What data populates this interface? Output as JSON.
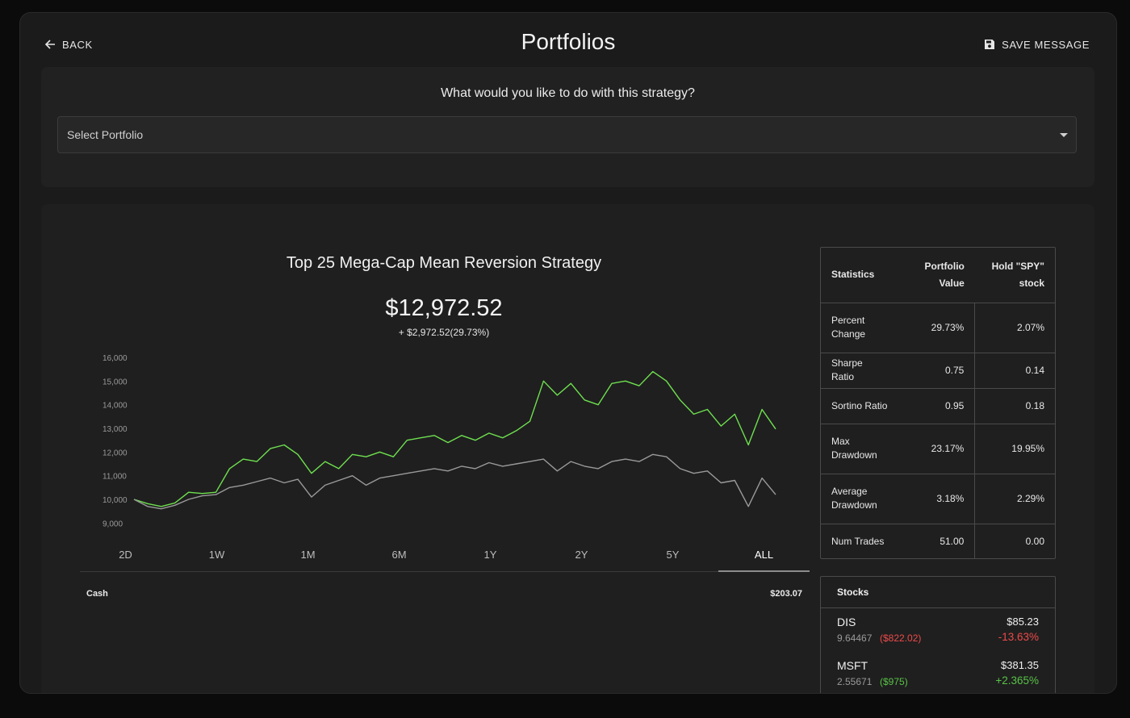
{
  "header": {
    "back_label": "BACK",
    "title": "Portfolios",
    "save_label": "SAVE MESSAGE"
  },
  "action_card": {
    "question": "What would you like to do with this strategy?",
    "select_placeholder": "Select Portfolio"
  },
  "strategy": {
    "title": "Top 25 Mega-Cap Mean Reversion Strategy",
    "value": "$12,972.52",
    "change": "+ $2,972.52(29.73%)"
  },
  "range_tabs": [
    "2D",
    "1W",
    "1M",
    "6M",
    "1Y",
    "2Y",
    "5Y",
    "ALL"
  ],
  "active_range": "ALL",
  "cash": {
    "label": "Cash",
    "value": "$203.07"
  },
  "statistics": {
    "headers": [
      "Statistics",
      "Portfolio Value",
      "Hold \"SPY\" stock"
    ],
    "rows": [
      {
        "name": "Percent Change",
        "portfolio": "29.73%",
        "spy": "2.07%"
      },
      {
        "name": "Sharpe Ratio",
        "portfolio": "0.75",
        "spy": "0.14"
      },
      {
        "name": "Sortino Ratio",
        "portfolio": "0.95",
        "spy": "0.18"
      },
      {
        "name": "Max Drawdown",
        "portfolio": "23.17%",
        "spy": "19.95%"
      },
      {
        "name": "Average Drawdown",
        "portfolio": "3.18%",
        "spy": "2.29%"
      },
      {
        "name": "Num Trades",
        "portfolio": "51.00",
        "spy": "0.00"
      }
    ]
  },
  "stocks": {
    "header": "Stocks",
    "items": [
      {
        "symbol": "DIS",
        "shares": "9.64467",
        "value": "($822.02)",
        "price": "$85.23",
        "pct": "-13.63%",
        "trend": "down"
      },
      {
        "symbol": "MSFT",
        "shares": "2.55671",
        "value": "($975)",
        "price": "$381.35",
        "pct": "+2.365%",
        "trend": "up"
      }
    ]
  },
  "colors": {
    "background": "#1b1b1b",
    "portfolio_line": "#6ee04f",
    "benchmark_line": "#9a9a9a",
    "negative": "#ee4a4a",
    "positive": "#58c247"
  },
  "chart_data": {
    "type": "line",
    "ylim": [
      8500,
      16000
    ],
    "yticks": [
      9000,
      10000,
      11000,
      12000,
      13000,
      14000,
      15000,
      16000
    ],
    "ytick_labels": [
      "9,000",
      "10,000",
      "11,000",
      "12,000",
      "13,000",
      "14,000",
      "15,000",
      "16,000"
    ],
    "series": [
      {
        "color": "#6ee04f",
        "values": [
          10000,
          9820,
          9700,
          9850,
          10300,
          10250,
          10300,
          11300,
          11700,
          11600,
          12150,
          12300,
          11900,
          11100,
          11600,
          11300,
          11900,
          11800,
          12000,
          11800,
          12500,
          12600,
          12700,
          12400,
          12700,
          12500,
          12800,
          12600,
          12900,
          13300,
          15000,
          14400,
          14900,
          14200,
          14000,
          14900,
          15000,
          14800,
          15400,
          15000,
          14200,
          13600,
          13800,
          13100,
          13600,
          12300,
          13800,
          12972
        ]
      },
      {
        "color": "#9a9a9a",
        "values": [
          10000,
          9700,
          9600,
          9750,
          10000,
          10150,
          10200,
          10500,
          10600,
          10750,
          10900,
          10700,
          10850,
          10100,
          10600,
          10800,
          11000,
          10600,
          10900,
          11000,
          11100,
          11200,
          11300,
          11200,
          11400,
          11300,
          11550,
          11400,
          11500,
          11600,
          11700,
          11200,
          11600,
          11400,
          11300,
          11600,
          11700,
          11600,
          11900,
          11800,
          11300,
          11100,
          11200,
          10700,
          10800,
          9700,
          10900,
          10200
        ]
      }
    ]
  }
}
